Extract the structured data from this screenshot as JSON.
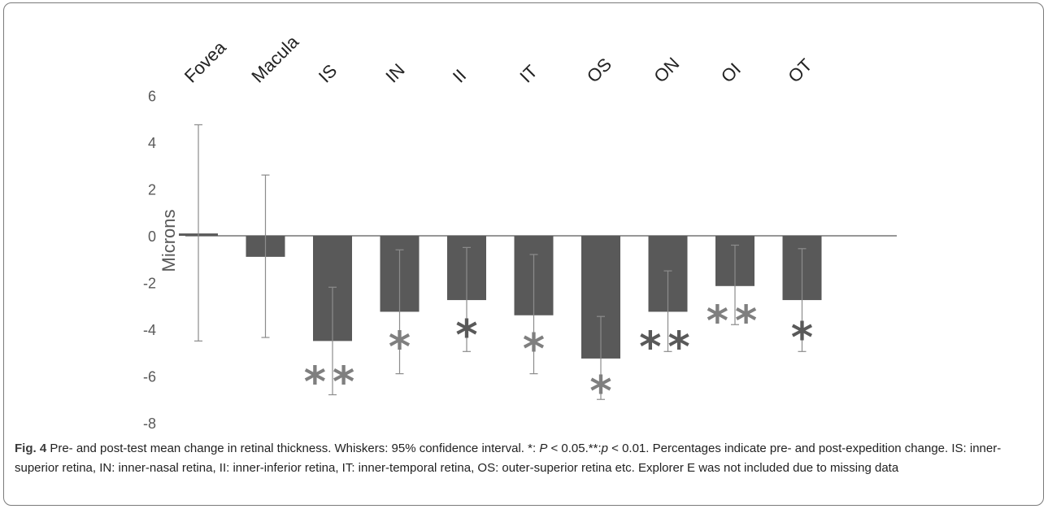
{
  "chart_data": {
    "type": "bar",
    "categories": [
      "Fovea",
      "Macula",
      "IS",
      "IN",
      "II",
      "IT",
      "OS",
      "ON",
      "OI",
      "OT"
    ],
    "values": [
      0.1,
      -0.9,
      -4.5,
      -3.25,
      -2.75,
      -3.4,
      -5.25,
      -3.25,
      -2.15,
      -2.75
    ],
    "ci_upper": [
      4.75,
      2.6,
      -2.2,
      -0.6,
      -0.5,
      -0.8,
      -3.45,
      -1.5,
      -0.4,
      -0.55
    ],
    "ci_lower": [
      -4.5,
      -4.35,
      -6.8,
      -5.9,
      -4.95,
      -5.9,
      -7.0,
      -4.95,
      -3.8,
      -4.95
    ],
    "significance": [
      "",
      "",
      "**",
      "*",
      "*",
      "*",
      "*",
      "**",
      "**",
      "*"
    ],
    "ylabel": "Microns",
    "ylim": [
      -8,
      6
    ],
    "yticks": [
      "6",
      "4",
      "2",
      "0",
      "-2",
      "-4",
      "-6",
      "-8"
    ],
    "grid": false,
    "legend": "none",
    "colors": {
      "bar": "#595959",
      "whisker": "#8c8c8c",
      "star_dark": "#595959",
      "star_light": "#7f7f7f",
      "axis": "#595959",
      "text": "#595959"
    }
  },
  "caption": {
    "label": "Fig. 4",
    "part1": " Pre- and post-test mean change in retinal thickness. Whiskers: 95% confidence interval. *: ",
    "p1": "P",
    "part2": " < 0.05.**:",
    "p2": "p",
    "part3": " < 0.01. Percentages indicate pre- and post-expedition change. IS: inner-superior retina, IN: inner-nasal retina, II: inner-inferior retina, IT: inner-temporal retina, OS: outer-superior retina etc. Explorer E was not included due to missing data"
  }
}
